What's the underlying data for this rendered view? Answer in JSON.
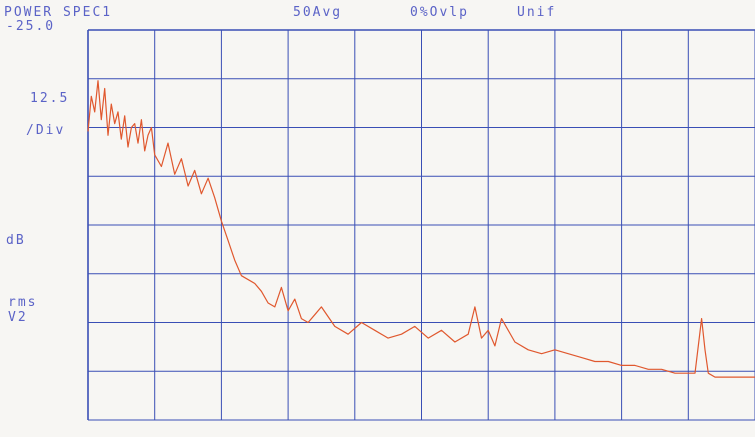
{
  "header": {
    "title": "POWER SPEC1",
    "averaging": "50Avg",
    "overlap": "0%Ovlp",
    "window": "Unif"
  },
  "y_axis": {
    "top_value": "-25.0",
    "scale": "12.5",
    "scale_unit": "/Div",
    "unit": "dB",
    "unit_rms": "rms",
    "unit_v2": "V2"
  },
  "colors": {
    "grid": "#3a4fb5",
    "trace": "#e0582e",
    "label": "#5b63c7"
  },
  "chart_data": {
    "type": "line",
    "title": "POWER SPEC1",
    "ylabel": "dB rms V2",
    "ylim": [
      -125,
      -25
    ],
    "x_divisions": 10,
    "y_divisions": 8,
    "y_per_div": 12.5,
    "grid": true,
    "series": [
      {
        "x": [
          0.0,
          0.05,
          0.1,
          0.15,
          0.2,
          0.25,
          0.3,
          0.35,
          0.4,
          0.45,
          0.5,
          0.55,
          0.6,
          0.65,
          0.7,
          0.75,
          0.8,
          0.85,
          0.9,
          0.95,
          1.0,
          1.1,
          1.2,
          1.3,
          1.4,
          1.5,
          1.6,
          1.7,
          1.8,
          1.9,
          2.0,
          2.1,
          2.2,
          2.3,
          2.5,
          2.6,
          2.7,
          2.8,
          2.9,
          3.0,
          3.1,
          3.2,
          3.3,
          3.4,
          3.5,
          3.7,
          3.9,
          4.1,
          4.3,
          4.5,
          4.7,
          4.9,
          5.1,
          5.3,
          5.5,
          5.7,
          5.8,
          5.9,
          6.0,
          6.1,
          6.2,
          6.4,
          6.6,
          6.8,
          7.0,
          7.2,
          7.4,
          7.6,
          7.8,
          8.0,
          8.2,
          8.4,
          8.6,
          8.8,
          9.0,
          9.1,
          9.2,
          9.25,
          9.3,
          9.4,
          9.6,
          9.8,
          10.0
        ],
        "y": [
          -51,
          -42,
          -46,
          -38,
          -48,
          -40,
          -52,
          -44,
          -49,
          -46,
          -53,
          -47,
          -55,
          -50,
          -49,
          -54,
          -48,
          -56,
          -52,
          -50,
          -57,
          -60,
          -54,
          -62,
          -58,
          -65,
          -61,
          -67,
          -63,
          -68,
          -74,
          -79,
          -84,
          -88,
          -90,
          -92,
          -95,
          -96,
          -91,
          -97,
          -94,
          -99,
          -100,
          -98,
          -96,
          -101,
          -103,
          -100,
          -102,
          -104,
          -103,
          -101,
          -104,
          -102,
          -105,
          -103,
          -96,
          -104,
          -102,
          -106,
          -99,
          -105,
          -107,
          -108,
          -107,
          -108,
          -109,
          -110,
          -110,
          -111,
          -111,
          -112,
          -112,
          -113,
          -113,
          -113,
          -99,
          -107,
          -113,
          -114,
          -114,
          -114,
          -114
        ]
      }
    ]
  }
}
